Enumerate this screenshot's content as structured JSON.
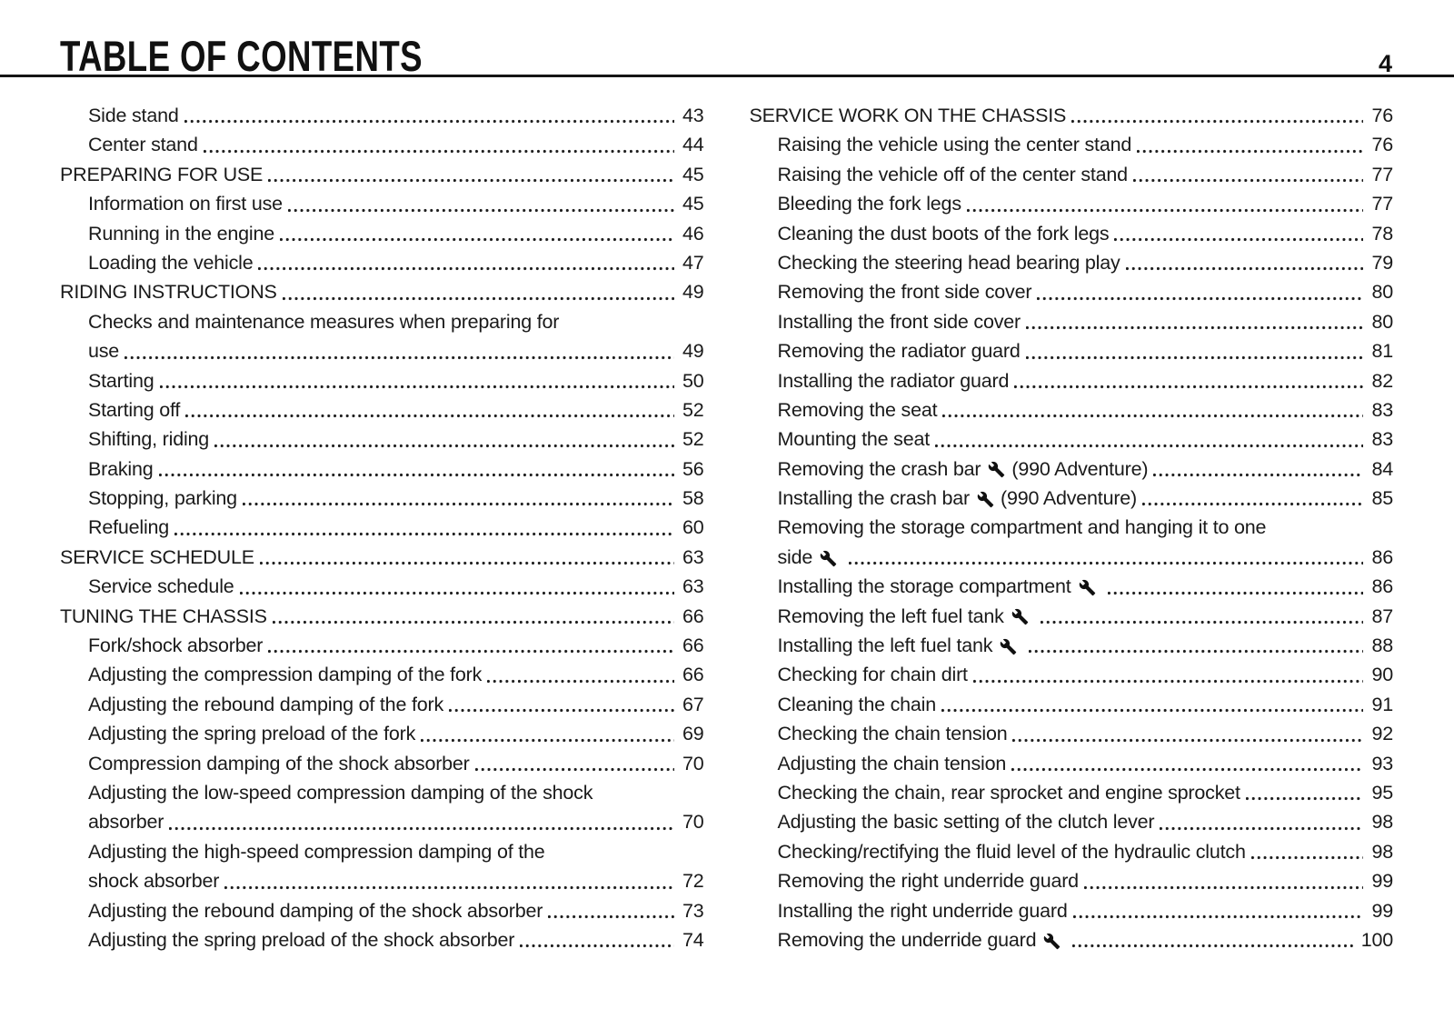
{
  "page": {
    "title": "TABLE OF CONTENTS",
    "page_number": "4",
    "ink_color": "#1a1a1a"
  },
  "icons": {
    "wrench": "wrench-icon"
  },
  "toc": {
    "columns": [
      {
        "entries": [
          {
            "section": false,
            "lines": [
              {
                "text": "Side stand",
                "page": "43"
              }
            ]
          },
          {
            "section": false,
            "lines": [
              {
                "text": "Center stand",
                "page": "44"
              }
            ]
          },
          {
            "section": true,
            "lines": [
              {
                "text": "PREPARING FOR USE",
                "page": "45"
              }
            ]
          },
          {
            "section": false,
            "lines": [
              {
                "text": "Information on first use",
                "page": "45"
              }
            ]
          },
          {
            "section": false,
            "lines": [
              {
                "text": "Running in the engine",
                "page": "46"
              }
            ]
          },
          {
            "section": false,
            "lines": [
              {
                "text": "Loading the vehicle",
                "page": "47"
              }
            ]
          },
          {
            "section": true,
            "lines": [
              {
                "text": "RIDING INSTRUCTIONS",
                "page": "49"
              }
            ]
          },
          {
            "section": false,
            "lines": [
              {
                "text": "Checks and maintenance measures when preparing for"
              },
              {
                "text": "use",
                "page": "49"
              }
            ]
          },
          {
            "section": false,
            "lines": [
              {
                "text": "Starting",
                "page": "50"
              }
            ]
          },
          {
            "section": false,
            "lines": [
              {
                "text": "Starting off",
                "page": "52"
              }
            ]
          },
          {
            "section": false,
            "lines": [
              {
                "text": "Shifting, riding",
                "page": "52"
              }
            ]
          },
          {
            "section": false,
            "lines": [
              {
                "text": "Braking",
                "page": "56"
              }
            ]
          },
          {
            "section": false,
            "lines": [
              {
                "text": "Stopping, parking",
                "page": "58"
              }
            ]
          },
          {
            "section": false,
            "lines": [
              {
                "text": "Refueling",
                "page": "60"
              }
            ]
          },
          {
            "section": true,
            "lines": [
              {
                "text": "SERVICE SCHEDULE",
                "page": "63"
              }
            ]
          },
          {
            "section": false,
            "lines": [
              {
                "text": "Service schedule",
                "page": "63"
              }
            ]
          },
          {
            "section": true,
            "lines": [
              {
                "text": "TUNING THE CHASSIS",
                "page": "66"
              }
            ]
          },
          {
            "section": false,
            "lines": [
              {
                "text": "Fork/shock absorber",
                "page": "66"
              }
            ]
          },
          {
            "section": false,
            "lines": [
              {
                "text": "Adjusting the compression damping of the fork",
                "page": "66"
              }
            ]
          },
          {
            "section": false,
            "lines": [
              {
                "text": "Adjusting the rebound damping of the fork",
                "page": "67"
              }
            ]
          },
          {
            "section": false,
            "lines": [
              {
                "text": "Adjusting the spring preload of the fork",
                "page": "69"
              }
            ]
          },
          {
            "section": false,
            "lines": [
              {
                "text": "Compression damping of the shock absorber",
                "page": "70"
              }
            ]
          },
          {
            "section": false,
            "lines": [
              {
                "text": "Adjusting the low-speed compression damping of the shock"
              },
              {
                "text": "absorber",
                "page": "70"
              }
            ]
          },
          {
            "section": false,
            "lines": [
              {
                "text": "Adjusting the high-speed compression damping of the"
              },
              {
                "text": "shock absorber",
                "page": "72"
              }
            ]
          },
          {
            "section": false,
            "lines": [
              {
                "text": "Adjusting the rebound damping of the shock absorber",
                "page": "73"
              }
            ]
          },
          {
            "section": false,
            "lines": [
              {
                "text": "Adjusting the spring preload of the shock absorber",
                "page": "74"
              }
            ]
          }
        ]
      },
      {
        "entries": [
          {
            "section": true,
            "lines": [
              {
                "text": "SERVICE WORK ON THE CHASSIS",
                "page": "76"
              }
            ]
          },
          {
            "section": false,
            "lines": [
              {
                "text": "Raising the vehicle using the center stand",
                "page": "76"
              }
            ]
          },
          {
            "section": false,
            "lines": [
              {
                "text": "Raising the vehicle off of the center stand",
                "page": "77"
              }
            ]
          },
          {
            "section": false,
            "lines": [
              {
                "text": "Bleeding the fork legs",
                "page": "77"
              }
            ]
          },
          {
            "section": false,
            "lines": [
              {
                "text": "Cleaning the dust boots of the fork legs",
                "page": "78"
              }
            ]
          },
          {
            "section": false,
            "lines": [
              {
                "text": "Checking the steering head bearing play",
                "page": "79"
              }
            ]
          },
          {
            "section": false,
            "lines": [
              {
                "text": "Removing the front side cover",
                "page": "80"
              }
            ]
          },
          {
            "section": false,
            "lines": [
              {
                "text": "Installing the front side cover",
                "page": "80"
              }
            ]
          },
          {
            "section": false,
            "lines": [
              {
                "text": "Removing the radiator guard",
                "page": "81"
              }
            ]
          },
          {
            "section": false,
            "lines": [
              {
                "text": "Installing the radiator guard",
                "page": "82"
              }
            ]
          },
          {
            "section": false,
            "lines": [
              {
                "text": "Removing the seat",
                "page": "83"
              }
            ]
          },
          {
            "section": false,
            "lines": [
              {
                "text": "Mounting the seat",
                "page": "83"
              }
            ]
          },
          {
            "section": false,
            "lines": [
              {
                "text": "Removing the crash bar",
                "icon": "wrench-icon",
                "suffix": "(990 Adventure)",
                "page": "84"
              }
            ]
          },
          {
            "section": false,
            "lines": [
              {
                "text": "Installing the crash bar",
                "icon": "wrench-icon",
                "suffix": "(990 Adventure)",
                "page": "85"
              }
            ]
          },
          {
            "section": false,
            "lines": [
              {
                "text": "Removing the storage compartment and hanging it to one"
              },
              {
                "text": "side",
                "icon": "wrench-icon",
                "page": "86"
              }
            ]
          },
          {
            "section": false,
            "lines": [
              {
                "text": "Installing the storage compartment",
                "icon": "wrench-icon",
                "page": "86"
              }
            ]
          },
          {
            "section": false,
            "lines": [
              {
                "text": "Removing the left fuel tank",
                "icon": "wrench-icon",
                "page": "87"
              }
            ]
          },
          {
            "section": false,
            "lines": [
              {
                "text": "Installing the left fuel tank",
                "icon": "wrench-icon",
                "page": "88"
              }
            ]
          },
          {
            "section": false,
            "lines": [
              {
                "text": "Checking for chain dirt",
                "page": "90"
              }
            ]
          },
          {
            "section": false,
            "lines": [
              {
                "text": "Cleaning the chain",
                "page": "91"
              }
            ]
          },
          {
            "section": false,
            "lines": [
              {
                "text": "Checking the chain tension",
                "page": "92"
              }
            ]
          },
          {
            "section": false,
            "lines": [
              {
                "text": "Adjusting the chain tension",
                "page": "93"
              }
            ]
          },
          {
            "section": false,
            "lines": [
              {
                "text": "Checking the chain, rear sprocket and engine sprocket",
                "page": "95"
              }
            ]
          },
          {
            "section": false,
            "lines": [
              {
                "text": "Adjusting the basic setting of the clutch lever",
                "page": "98"
              }
            ]
          },
          {
            "section": false,
            "lines": [
              {
                "text": "Checking/rectifying the fluid level of the hydraulic clutch",
                "page": "98"
              }
            ]
          },
          {
            "section": false,
            "lines": [
              {
                "text": "Removing the right underride guard",
                "page": "99"
              }
            ]
          },
          {
            "section": false,
            "lines": [
              {
                "text": "Installing the right underride guard",
                "page": "99"
              }
            ]
          },
          {
            "section": false,
            "lines": [
              {
                "text": "Removing the underride guard",
                "icon": "wrench-icon",
                "page": "100"
              }
            ]
          }
        ]
      }
    ]
  }
}
